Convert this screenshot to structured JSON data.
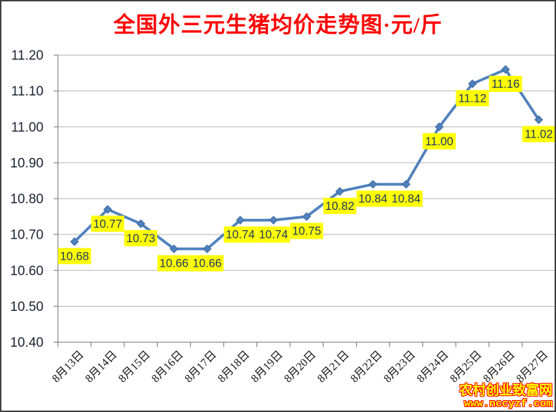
{
  "title": "全国外三元生猪均价走势图·元/斤",
  "watermark": {
    "site_name": "农村创业致富网",
    "site_url": "www.nccyzf.com"
  },
  "chart_data": {
    "type": "line",
    "title": "全国外三元生猪均价走势图·元/斤",
    "categories": [
      "8月13日",
      "8月14日",
      "8月15日",
      "8月16日",
      "8月17日",
      "8月18日",
      "8月19日",
      "8月20日",
      "8月21日",
      "8月22日",
      "8月23日",
      "8月24日",
      "8月25日",
      "8月26日",
      "8月27日"
    ],
    "values": [
      10.68,
      10.77,
      10.73,
      10.66,
      10.66,
      10.74,
      10.74,
      10.75,
      10.82,
      10.84,
      10.84,
      11.0,
      11.12,
      11.16,
      11.02
    ],
    "xlabel": "",
    "ylabel": "",
    "ylim": [
      10.4,
      11.2
    ],
    "ytick_step": 0.1,
    "ytick_labels": [
      "11.20",
      "11.10",
      "11.00",
      "10.90",
      "10.80",
      "10.70",
      "10.60",
      "10.50",
      "10.40"
    ],
    "grid": true,
    "legend_position": "none",
    "marker": "diamond",
    "data_labels_visible": true,
    "colors": {
      "line": "#4F81BD",
      "marker_fill": "#4F81BD",
      "marker_stroke": "#3A679C",
      "gridline": "#b3b3b3",
      "axis_line": "#8c8c8c",
      "ytick_text": "#1a2433",
      "xtick_text": "#141414",
      "title_text": "#fe0000",
      "data_label_bg": "#FFFF00",
      "data_label_text": "#1F3864",
      "watermark_fill": "#FFFF00",
      "watermark_outline": "#FF0000"
    }
  }
}
